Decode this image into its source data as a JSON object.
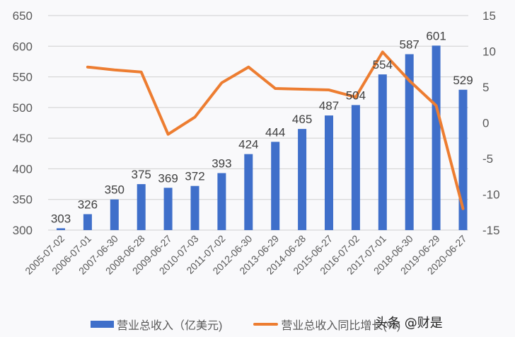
{
  "chart_data": {
    "type": "bar+line",
    "title": "",
    "categories": [
      "2005-07-02",
      "2006-07-01",
      "2007-06-30",
      "2008-06-28",
      "2009-06-27",
      "2010-07-03",
      "2011-07-02",
      "2012-06-30",
      "2013-06-29",
      "2014-06-28",
      "2015-06-27",
      "2016-07-02",
      "2017-07-01",
      "2018-06-30",
      "2019-06-29",
      "2020-06-27"
    ],
    "series": [
      {
        "name": "营业总收入（亿美元)",
        "type": "bar",
        "axis": "left",
        "color": "#3f6fca",
        "values": [
          303,
          326,
          350,
          375,
          369,
          372,
          393,
          424,
          444,
          465,
          487,
          504,
          554,
          587,
          601,
          529
        ]
      },
      {
        "name": "营业总收入同比增长(%)",
        "type": "line",
        "axis": "right",
        "color": "#ed7d31",
        "values": [
          null,
          7.8,
          7.4,
          7.1,
          -1.6,
          0.8,
          5.6,
          7.8,
          4.8,
          4.7,
          4.6,
          3.6,
          9.9,
          5.9,
          2.4,
          -12.0
        ]
      }
    ],
    "y_left": {
      "ylim": [
        300,
        650
      ],
      "ticks": [
        300,
        350,
        400,
        450,
        500,
        550,
        600,
        650
      ]
    },
    "y_right": {
      "ylim": [
        -15,
        15
      ],
      "ticks": [
        -15,
        -10,
        -5,
        0,
        5,
        10,
        15
      ]
    },
    "xlabel": "",
    "ylabel": "",
    "grid": true,
    "legend_position": "bottom",
    "legend": [
      "营业总收入（亿美元)",
      "营业总收入同比增长(%)"
    ]
  },
  "legend": {
    "bar_label": "营业总收入（亿美元)",
    "line_label": "营业总收入同比增长(%)"
  },
  "watermark": "头条 @财是"
}
